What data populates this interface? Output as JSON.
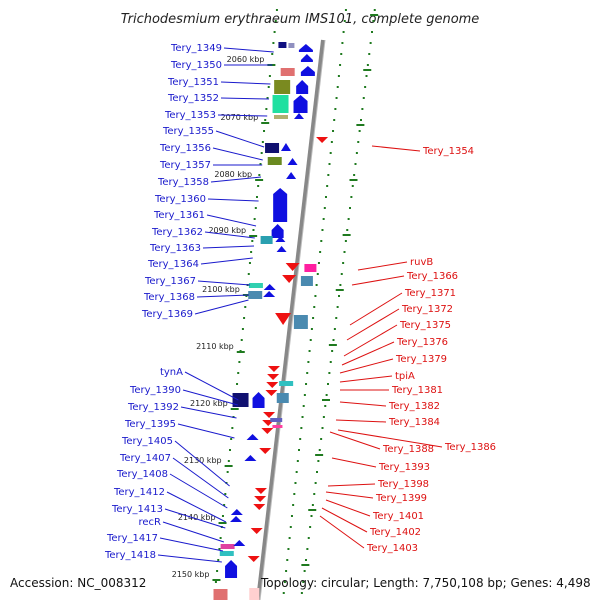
{
  "title": "Trichodesmium erythraeum IMS101, complete genome",
  "footer": {
    "accession": "Accession: NC_008312",
    "topology": "Topology: circular; Length: 7,750,108 bp; Genes: 4,498"
  },
  "colors": {
    "left_label": "#1a1acc",
    "right_label": "#dd1111",
    "plus_strand_arrow": "#1010e0",
    "minus_strand_arrow": "#ee1111",
    "backbone": "#888888",
    "tick": "#1f7a1f"
  },
  "kbp_marks": [
    {
      "label": "2060 kbp"
    },
    {
      "label": "2070 kbp"
    },
    {
      "label": "2080 kbp"
    },
    {
      "label": "2090 kbp"
    },
    {
      "label": "2100 kbp"
    },
    {
      "label": "2110 kbp"
    },
    {
      "label": "2120 kbp"
    },
    {
      "label": "2130 kbp"
    },
    {
      "label": "2140 kbp"
    },
    {
      "label": "2150 kbp"
    }
  ],
  "left_genes": [
    "Tery_1349",
    "Tery_1350",
    "Tery_1351",
    "Tery_1352",
    "Tery_1353",
    "Tery_1355",
    "Tery_1356",
    "Tery_1357",
    "Tery_1358",
    "Tery_1360",
    "Tery_1361",
    "Tery_1362",
    "Tery_1363",
    "Tery_1364",
    "Tery_1367",
    "Tery_1368",
    "Tery_1369",
    "tynA",
    "Tery_1390",
    "Tery_1392",
    "Tery_1395",
    "Tery_1405",
    "Tery_1407",
    "Tery_1408",
    "Tery_1412",
    "Tery_1413",
    "recR",
    "Tery_1417",
    "Tery_1418"
  ],
  "right_genes": [
    "Tery_1354",
    "ruvB",
    "Tery_1366",
    "Tery_1371",
    "Tery_1372",
    "Tery_1375",
    "Tery_1376",
    "Tery_1379",
    "tpiA",
    "Tery_1381",
    "Tery_1382",
    "Tery_1384",
    "Tery_1388",
    "Tery_1386",
    "Tery_1393",
    "Tery_1398",
    "Tery_1399",
    "Tery_1401",
    "Tery_1402",
    "Tery_1403"
  ]
}
